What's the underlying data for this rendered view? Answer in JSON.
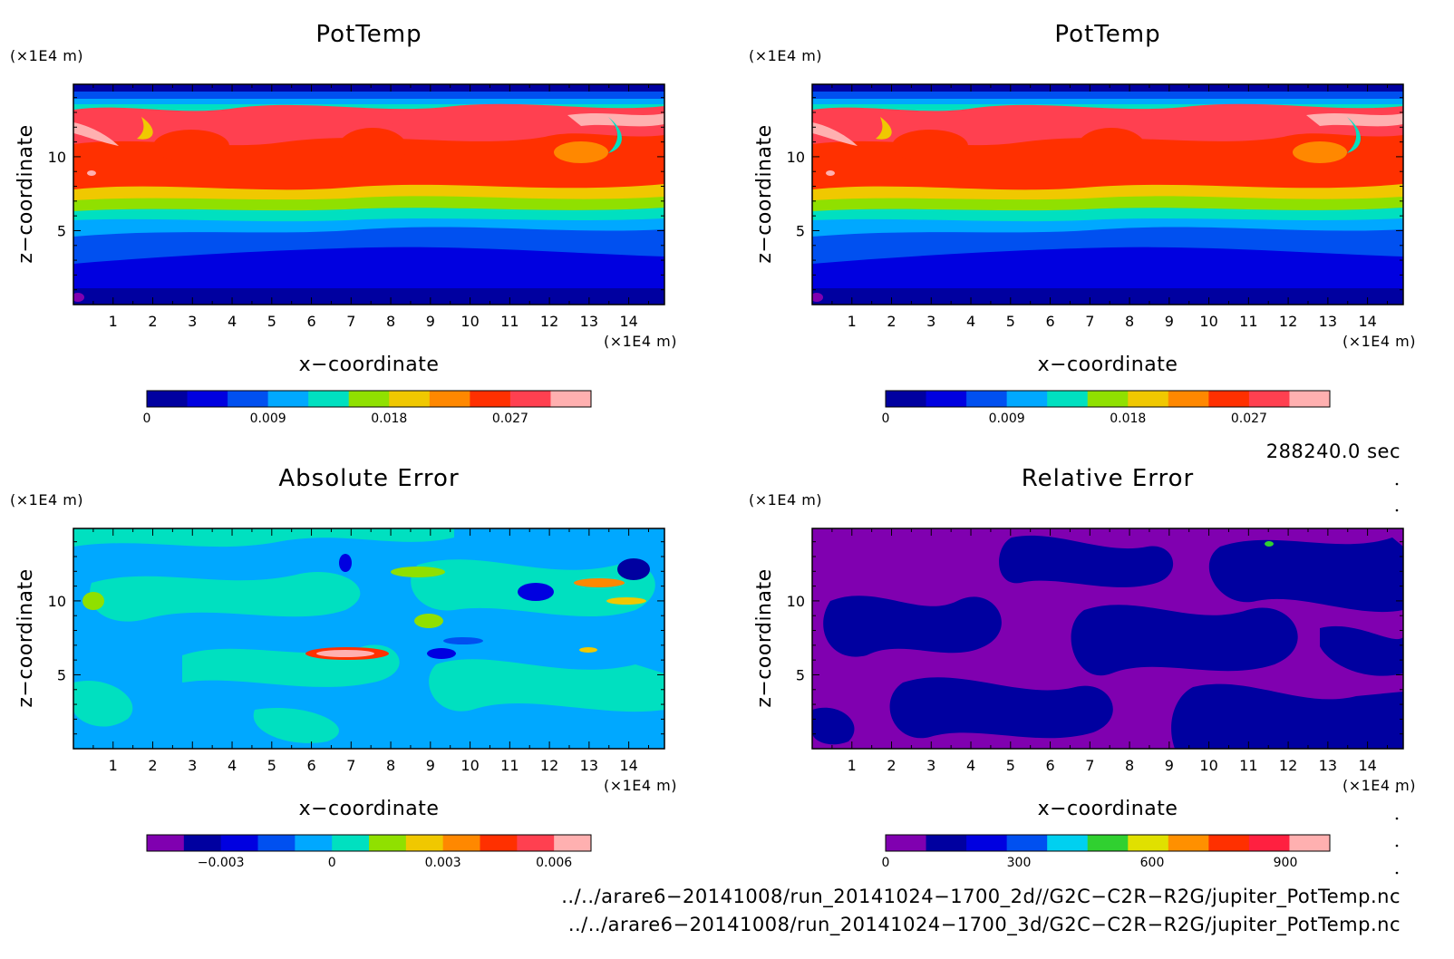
{
  "chart_data": [
    {
      "type": "heatmap",
      "title": "PotTemp",
      "xlabel": "x−coordinate",
      "ylabel": "z−coordinate",
      "x_unit": "(×1E4 m)",
      "y_unit": "(×1E4 m)",
      "xlim": [
        0,
        14.9
      ],
      "ylim": [
        0,
        14.9
      ],
      "xticks": [
        "1",
        "2",
        "3",
        "4",
        "5",
        "6",
        "7",
        "8",
        "9",
        "10",
        "11",
        "12",
        "13",
        "14"
      ],
      "yticks": [
        "5",
        "10"
      ],
      "field": "potential_temperature",
      "colorbar": {
        "colors": [
          "#0000a0",
          "#0000e0",
          "#0050f0",
          "#00a8ff",
          "#00e0c0",
          "#90e000",
          "#f0c800",
          "#ff8800",
          "#ff3000",
          "#ff4050",
          "#ffb0b0"
        ],
        "ticks": [
          "0",
          "0.009",
          "0.018",
          "0.027"
        ],
        "tick_values": [
          0,
          0.009,
          0.018,
          0.027
        ],
        "range": [
          0,
          0.033
        ]
      }
    },
    {
      "type": "heatmap",
      "title": "PotTemp",
      "xlabel": "x−coordinate",
      "ylabel": "z−coordinate",
      "x_unit": "(×1E4 m)",
      "y_unit": "(×1E4 m)",
      "xlim": [
        0,
        14.9
      ],
      "ylim": [
        0,
        14.9
      ],
      "xticks": [
        "1",
        "2",
        "3",
        "4",
        "5",
        "6",
        "7",
        "8",
        "9",
        "10",
        "11",
        "12",
        "13",
        "14"
      ],
      "yticks": [
        "5",
        "10"
      ],
      "field": "potential_temperature",
      "colorbar": {
        "colors": [
          "#0000a0",
          "#0000e0",
          "#0050f0",
          "#00a8ff",
          "#00e0c0",
          "#90e000",
          "#f0c800",
          "#ff8800",
          "#ff3000",
          "#ff4050",
          "#ffb0b0"
        ],
        "ticks": [
          "0",
          "0.009",
          "0.018",
          "0.027"
        ],
        "tick_values": [
          0,
          0.009,
          0.018,
          0.027
        ],
        "range": [
          0,
          0.033
        ]
      }
    },
    {
      "type": "heatmap",
      "title": "Absolute Error",
      "xlabel": "x−coordinate",
      "ylabel": "z−coordinate",
      "x_unit": "(×1E4 m)",
      "y_unit": "(×1E4 m)",
      "xlim": [
        0,
        14.9
      ],
      "ylim": [
        0,
        14.9
      ],
      "xticks": [
        "1",
        "2",
        "3",
        "4",
        "5",
        "6",
        "7",
        "8",
        "9",
        "10",
        "11",
        "12",
        "13",
        "14"
      ],
      "yticks": [
        "5",
        "10"
      ],
      "field": "absolute_error",
      "colorbar": {
        "colors": [
          "#8000b0",
          "#0000a0",
          "#0000e0",
          "#0050f0",
          "#00a8ff",
          "#00e0c0",
          "#90e000",
          "#f0c800",
          "#ff8800",
          "#ff3000",
          "#ff4050",
          "#ffb0b0"
        ],
        "ticks": [
          "−0.003",
          "0",
          "0.003",
          "0.006"
        ],
        "tick_values": [
          -0.003,
          0,
          0.003,
          0.006
        ],
        "range": [
          -0.005,
          0.007
        ]
      }
    },
    {
      "type": "heatmap",
      "title": "Relative Error",
      "xlabel": "x−coordinate",
      "ylabel": "z−coordinate",
      "x_unit": "(×1E4 m)",
      "y_unit": "(×1E4 m)",
      "xlim": [
        0,
        14.9
      ],
      "ylim": [
        0,
        14.9
      ],
      "xticks": [
        "1",
        "2",
        "3",
        "4",
        "5",
        "6",
        "7",
        "8",
        "9",
        "10",
        "11",
        "12",
        "13",
        "14"
      ],
      "yticks": [
        "5",
        "10"
      ],
      "field": "relative_error",
      "colorbar": {
        "colors": [
          "#8000b0",
          "#0000a0",
          "#0000e0",
          "#0050f0",
          "#00d0f0",
          "#30d030",
          "#e0e000",
          "#ff9000",
          "#ff3000",
          "#ff2040",
          "#ffb0b0"
        ],
        "ticks": [
          "0",
          "300",
          "600",
          "900"
        ],
        "tick_values": [
          0,
          300,
          600,
          900
        ],
        "range": [
          0,
          1000
        ]
      }
    }
  ],
  "info": {
    "time": "288240.0 sec",
    "file1": "../../arare6−20141008/run_20141024−1700_2d//G2C−C2R−R2G/jupiter_PotTemp.nc",
    "file2": "../../arare6−20141008/run_20141024−1700_3d/G2C−C2R−R2G/jupiter_PotTemp.nc"
  }
}
